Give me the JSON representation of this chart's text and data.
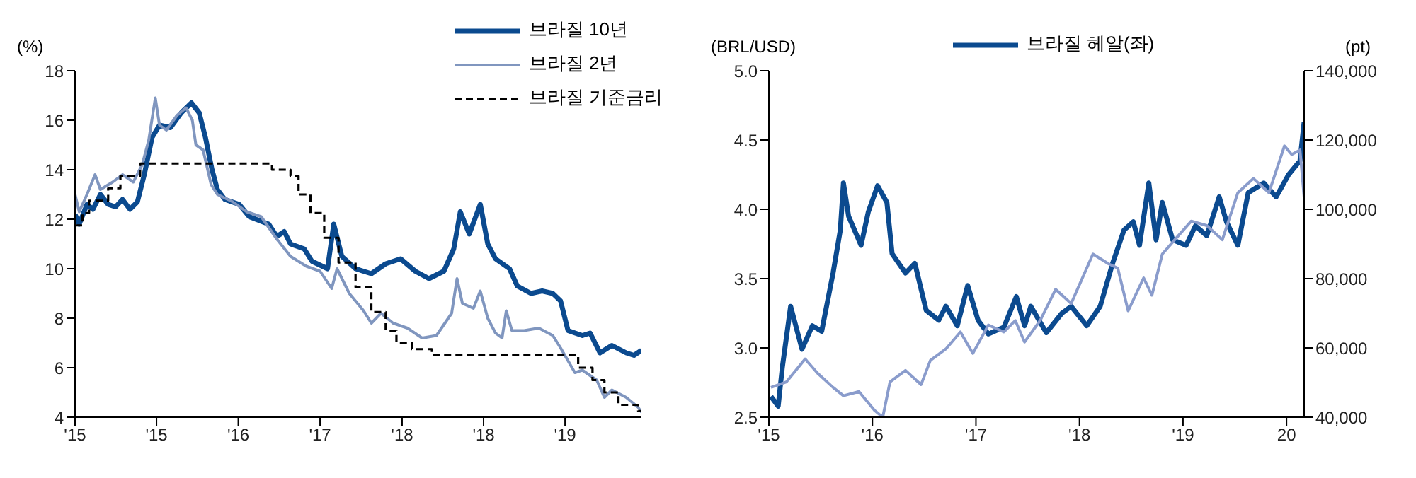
{
  "chart_data": [
    {
      "type": "line",
      "ylabel": "(%)",
      "legend": "top right",
      "xlim": [
        "2015-01-01",
        "2020-03-13"
      ],
      "ylim": [
        4,
        18
      ],
      "yticks": [
        4,
        6,
        8,
        10,
        12,
        14,
        16,
        18
      ],
      "xticks": [
        {
          "value": "2015-01-01",
          "label": "'15"
        },
        {
          "value": "2015-10-01",
          "label": "'15"
        },
        {
          "value": "2016-07-01",
          "label": "'16"
        },
        {
          "value": "2017-04-01",
          "label": "'17"
        },
        {
          "value": "2018-01-01",
          "label": "'18"
        },
        {
          "value": "2018-10-01",
          "label": "'18"
        },
        {
          "value": "2019-07-01",
          "label": "'19"
        }
      ],
      "series": [
        {
          "name": "브라질 10년",
          "color": "#0b4a8f",
          "x": [
            "2015-01-01",
            "2015-01-15",
            "2015-02-10",
            "2015-03-02",
            "2015-03-27",
            "2015-04-22",
            "2015-05-17",
            "2015-06-09",
            "2015-07-04",
            "2015-07-29",
            "2015-08-21",
            "2015-09-16",
            "2015-10-11",
            "2015-11-17",
            "2015-12-23",
            "2016-01-26",
            "2016-02-21",
            "2016-03-13",
            "2016-04-04",
            "2016-04-22",
            "2016-05-17",
            "2016-07-04",
            "2016-08-07",
            "2016-10-11",
            "2016-11-07",
            "2016-12-02",
            "2016-12-23",
            "2017-02-07",
            "2017-03-05",
            "2017-04-26",
            "2017-05-17",
            "2017-06-13",
            "2017-07-29",
            "2017-09-20",
            "2017-11-07",
            "2017-12-27",
            "2018-02-14",
            "2018-04-01",
            "2018-05-21",
            "2018-06-23",
            "2018-07-15",
            "2018-08-14",
            "2018-09-20",
            "2018-10-15",
            "2018-11-10",
            "2018-12-27",
            "2019-01-22",
            "2019-03-09",
            "2019-04-15",
            "2019-05-21",
            "2019-06-16",
            "2019-07-11",
            "2019-08-28",
            "2019-09-23",
            "2019-10-26",
            "2019-12-05",
            "2020-01-22",
            "2020-02-17",
            "2020-03-13"
          ],
          "values": [
            12.2,
            11.8,
            12.6,
            12.4,
            13,
            12.6,
            12.5,
            12.8,
            12.4,
            12.7,
            13.8,
            15.3,
            15.8,
            15.7,
            16.3,
            16.7,
            16.3,
            15.3,
            14,
            13.2,
            12.8,
            12.6,
            12.1,
            11.8,
            11.3,
            11.5,
            11,
            10.8,
            10.3,
            10,
            11.8,
            10.5,
            10,
            9.8,
            10.2,
            10.4,
            9.9,
            9.6,
            9.9,
            10.8,
            12.3,
            11.4,
            12.6,
            11,
            10.4,
            10,
            9.3,
            9,
            9.1,
            9,
            8.7,
            7.5,
            7.3,
            7.4,
            6.6,
            6.9,
            6.6,
            6.5,
            6.7
          ]
        },
        {
          "name": "브라질 2년",
          "color": "#8096bf",
          "x": [
            "2015-01-01",
            "2015-01-15",
            "2015-02-10",
            "2015-03-09",
            "2015-03-27",
            "2015-05-07",
            "2015-06-09",
            "2015-07-15",
            "2015-08-14",
            "2015-09-05",
            "2015-09-27",
            "2015-10-11",
            "2015-11-03",
            "2015-12-09",
            "2016-01-08",
            "2016-01-29",
            "2016-02-10",
            "2016-03-05",
            "2016-04-01",
            "2016-04-22",
            "2016-06-13",
            "2016-07-29",
            "2016-09-16",
            "2016-11-07",
            "2016-12-23",
            "2017-02-14",
            "2017-04-01",
            "2017-05-10",
            "2017-05-28",
            "2017-07-08",
            "2017-08-25",
            "2017-09-20",
            "2017-10-22",
            "2017-12-02",
            "2018-01-19",
            "2018-03-09",
            "2018-04-26",
            "2018-06-16",
            "2018-07-04",
            "2018-07-22",
            "2018-08-28",
            "2018-09-20",
            "2018-10-15",
            "2018-11-10",
            "2018-12-02",
            "2018-12-16",
            "2019-01-04",
            "2019-02-14",
            "2019-04-04",
            "2019-05-21",
            "2019-06-16",
            "2019-08-03",
            "2019-08-28",
            "2019-10-15",
            "2019-11-10",
            "2019-12-05",
            "2020-01-22",
            "2020-03-02",
            "2020-03-13"
          ],
          "values": [
            13,
            12.3,
            13,
            13.8,
            13.2,
            13.5,
            13.8,
            13.5,
            14.2,
            15.2,
            16.9,
            15.8,
            15.6,
            16.2,
            16.5,
            16,
            15,
            14.8,
            13.4,
            13,
            12.7,
            12.3,
            12.1,
            11.2,
            10.5,
            10.1,
            9.9,
            9.2,
            10,
            9,
            8.3,
            7.8,
            8.2,
            7.8,
            7.6,
            7.2,
            7.3,
            8.2,
            9.6,
            8.6,
            8.4,
            9.1,
            8,
            7.4,
            7.2,
            8.3,
            7.5,
            7.5,
            7.6,
            7.3,
            6.8,
            5.8,
            5.9,
            5.5,
            4.8,
            5.1,
            4.8,
            4.4,
            4.2
          ]
        },
        {
          "name": "브라질 기준금리",
          "type": "step",
          "line_style": "dashed",
          "color": "#000000",
          "x": [
            "2015-01-01",
            "2015-01-26",
            "2015-02-17",
            "2015-04-22",
            "2015-06-02",
            "2015-08-07",
            "2016-10-22",
            "2016-12-23",
            "2017-01-19",
            "2017-02-28",
            "2017-04-15",
            "2017-06-02",
            "2017-07-29",
            "2017-09-20",
            "2017-11-07",
            "2017-12-13",
            "2018-02-03",
            "2018-04-11",
            "2019-08-14",
            "2019-10-01",
            "2019-11-10",
            "2019-12-27",
            "2020-03-02",
            "2020-03-13"
          ],
          "values": [
            11.75,
            12.25,
            12.75,
            13.25,
            13.75,
            14.25,
            14,
            13.75,
            13,
            12.25,
            11.25,
            10.25,
            9.25,
            8.25,
            7.5,
            7,
            6.75,
            6.5,
            6,
            5.5,
            5,
            4.5,
            4.25,
            4.25
          ]
        }
      ]
    },
    {
      "type": "line",
      "ylabel": "(BRL/USD)",
      "y2label": "(pt)",
      "legend": "top",
      "xlim": [
        2015,
        2020.17
      ],
      "ylim": [
        2.5,
        5
      ],
      "yticks": [
        2.5,
        {
          "value": 3,
          "label": "3.0"
        },
        3.5,
        {
          "value": 4,
          "label": "4.0"
        },
        4.5,
        {
          "value": 5,
          "label": "5.0"
        }
      ],
      "y2lim": [
        40000,
        140000
      ],
      "y2ticks": [
        {
          "value": 40000,
          "label": "40,000"
        },
        {
          "value": 60000,
          "label": "60,000"
        },
        {
          "value": 80000,
          "label": "80,000"
        },
        {
          "value": 100000,
          "label": "100,000"
        },
        {
          "value": 120000,
          "label": "120,000"
        },
        {
          "value": 140000,
          "label": "140,000"
        }
      ],
      "xticks": [
        {
          "value": 2015,
          "label": "'15"
        },
        {
          "value": 2016,
          "label": "'16"
        },
        {
          "value": 2017,
          "label": "'17"
        },
        {
          "value": 2018,
          "label": "'18"
        },
        {
          "value": 2019,
          "label": "'19"
        },
        {
          "value": 2020,
          "label": "20"
        }
      ],
      "series": [
        {
          "name": "브라질 헤알(좌)",
          "color": "#0b4a8f",
          "x": [
            2015.02,
            2015.09,
            2015.13,
            2015.21,
            2015.32,
            2015.42,
            2015.51,
            2015.62,
            2015.69,
            2015.72,
            2015.77,
            2015.89,
            2015.96,
            2016.05,
            2016.14,
            2016.19,
            2016.32,
            2016.41,
            2016.52,
            2016.64,
            2016.71,
            2016.82,
            2016.92,
            2017.02,
            2017.12,
            2017.27,
            2017.39,
            2017.47,
            2017.53,
            2017.68,
            2017.83,
            2017.92,
            2018.07,
            2018.2,
            2018.32,
            2018.43,
            2018.52,
            2018.58,
            2018.67,
            2018.74,
            2018.8,
            2018.9,
            2019.03,
            2019.12,
            2019.23,
            2019.35,
            2019.42,
            2019.53,
            2019.63,
            2019.78,
            2019.9,
            2020.02,
            2020.13,
            2020.17
          ],
          "values": [
            2.65,
            2.58,
            2.86,
            3.3,
            2.99,
            3.16,
            3.12,
            3.54,
            3.85,
            4.19,
            3.95,
            3.74,
            3.98,
            4.17,
            4.05,
            3.68,
            3.54,
            3.61,
            3.27,
            3.2,
            3.3,
            3.16,
            3.45,
            3.2,
            3.1,
            3.15,
            3.37,
            3.16,
            3.3,
            3.11,
            3.25,
            3.3,
            3.16,
            3.3,
            3.61,
            3.85,
            3.91,
            3.74,
            4.19,
            3.78,
            4.05,
            3.78,
            3.74,
            3.88,
            3.81,
            4.09,
            3.91,
            3.74,
            4.12,
            4.19,
            4.09,
            4.25,
            4.35,
            4.63
          ]
        },
        {
          "axis": "y2",
          "color": "#8a9ccc",
          "x": [
            2015.02,
            2015.17,
            2015.35,
            2015.47,
            2015.62,
            2015.72,
            2015.87,
            2016.02,
            2016.1,
            2016.17,
            2016.32,
            2016.47,
            2016.56,
            2016.71,
            2016.85,
            2016.97,
            2017.12,
            2017.27,
            2017.38,
            2017.47,
            2017.62,
            2017.77,
            2017.92,
            2018.13,
            2018.28,
            2018.37,
            2018.47,
            2018.62,
            2018.7,
            2018.8,
            2018.92,
            2019.08,
            2019.23,
            2019.38,
            2019.53,
            2019.68,
            2019.83,
            2019.98,
            2020.05,
            2020.13,
            2020.17
          ],
          "values": [
            48600,
            50200,
            56800,
            52700,
            48600,
            46200,
            47400,
            42000,
            40000,
            50200,
            53500,
            49400,
            56400,
            59700,
            64600,
            58400,
            66600,
            64600,
            67900,
            61700,
            67900,
            76900,
            72800,
            87100,
            84300,
            83000,
            70700,
            80200,
            75200,
            87100,
            91200,
            96600,
            95300,
            91200,
            104800,
            108900,
            104800,
            118300,
            115800,
            117100,
            103500
          ]
        }
      ]
    }
  ]
}
